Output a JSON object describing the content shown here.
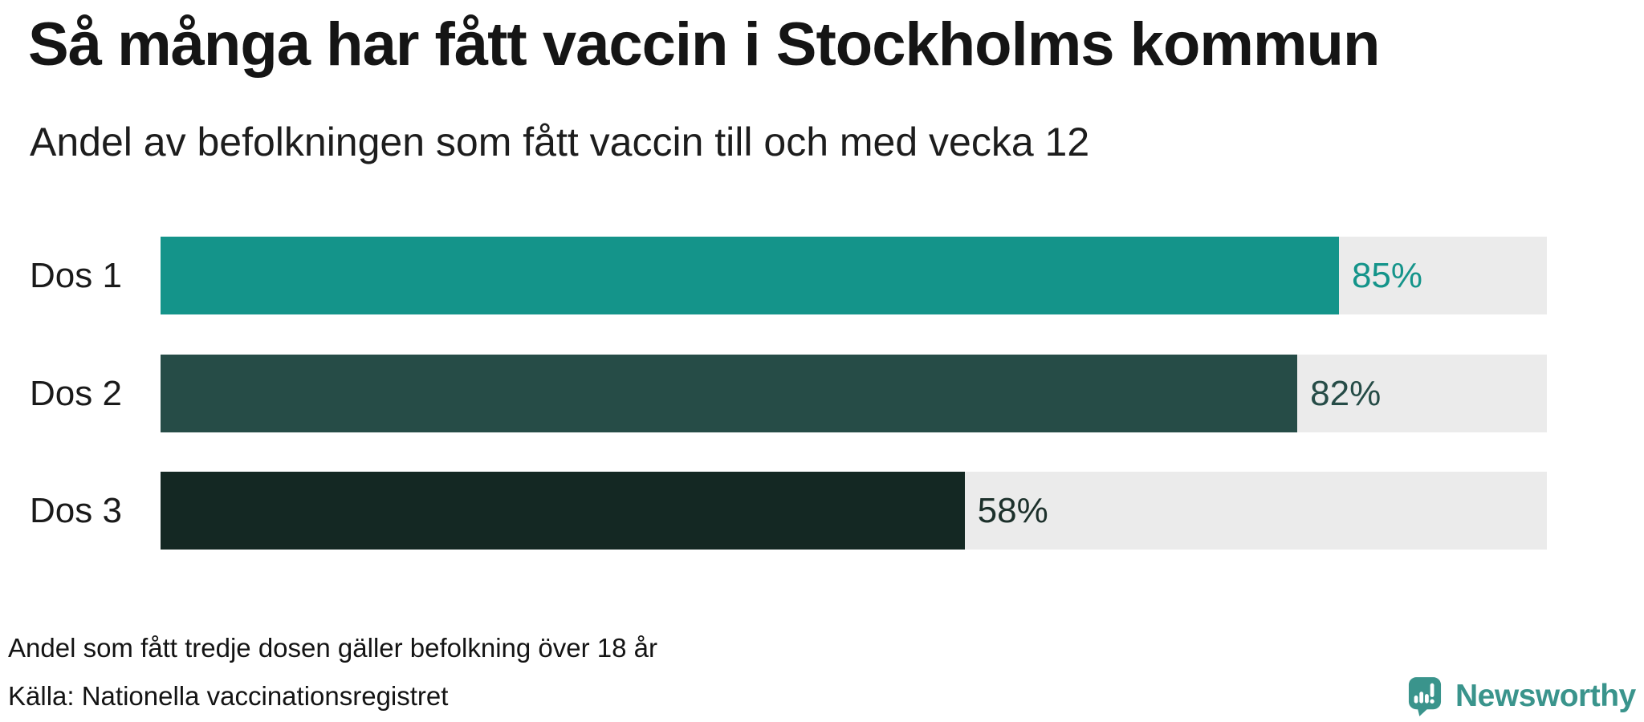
{
  "title": "Så många har fått vaccin i Stockholms kommun",
  "subtitle": "Andel av befolkningen som fått vaccin till och med vecka 12",
  "footnote": "Andel som fått tredje dosen gäller befolkning över 18 år",
  "source": "Källa: Nationella vaccinationsregistret",
  "branding": {
    "logo_text": "Newsworthy",
    "logo_color": "#3a948c",
    "logo_icon": "newsworthy-bar-chart-bubble-icon"
  },
  "chart_data": {
    "type": "bar",
    "orientation": "horizontal",
    "title": "Så många har fått vaccin i Stockholms kommun",
    "subtitle": "Andel av befolkningen som fått vaccin till och med vecka 12",
    "categories": [
      "Dos 1",
      "Dos 2",
      "Dos 3"
    ],
    "values": [
      85,
      82,
      58
    ],
    "value_labels": [
      "85%",
      "82%",
      "58%"
    ],
    "unit": "%",
    "xlim": [
      0,
      100
    ],
    "grid": false,
    "legend": false,
    "bar_colors": [
      "#14948a",
      "#264c47",
      "#142823"
    ],
    "label_colors": [
      "#14948a",
      "#264c47",
      "#1c302b"
    ],
    "track_color": "#ebebeb",
    "footnote": "Andel som fått tredje dosen gäller befolkning över 18 år",
    "source": "Källa: Nationella vaccinationsregistret"
  }
}
